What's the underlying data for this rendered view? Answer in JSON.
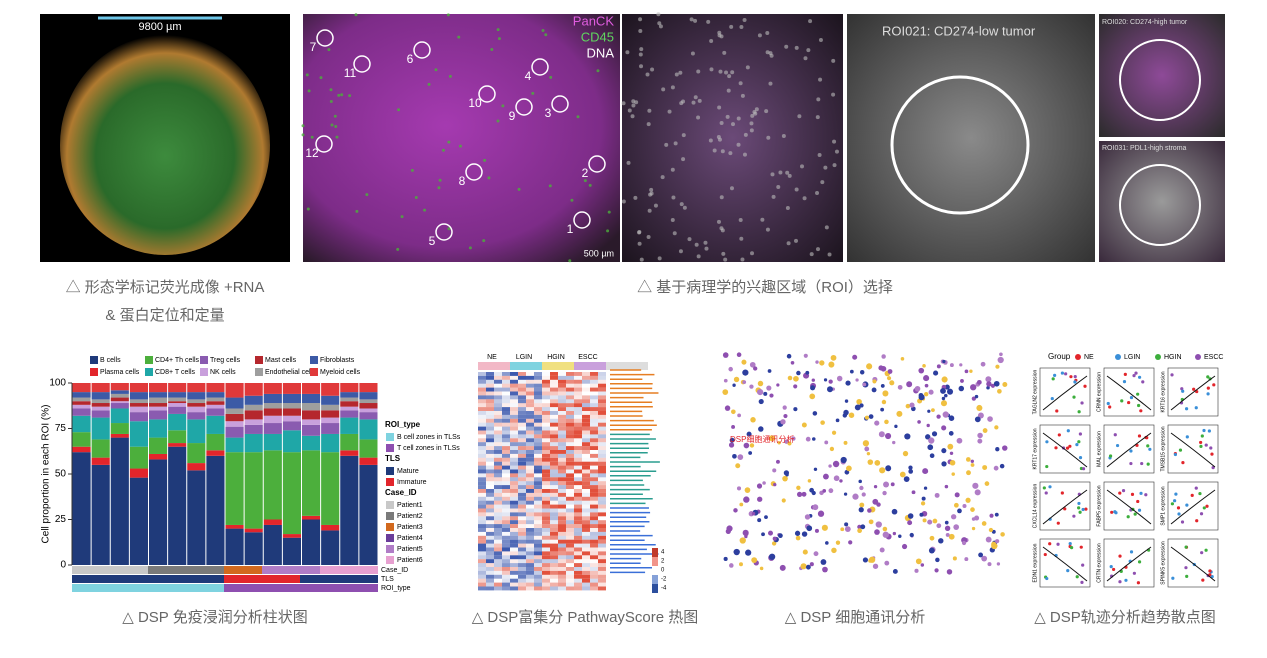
{
  "top_panels": {
    "scale_bar": "9800 µm",
    "markers": [
      "PanCK",
      "CD45",
      "DNA"
    ],
    "roi_numbers": [
      "7",
      "11",
      "6",
      "4",
      "10",
      "9",
      "3",
      "12",
      "2",
      "8",
      "1",
      "5"
    ],
    "scale_bar_2": "500 µm",
    "roi_titles": [
      "ROI021: CD274-low tumor",
      "ROI020: CD274-high tumor",
      "ROI031: PDL1-high stroma"
    ]
  },
  "captions": [
    "△ 形态学标记荧光成像 +RNA",
    "& 蛋白定位和定量",
    "△ 基于病理学的兴趣区域（ROI）选择",
    "△ DSP 免疫浸润分析柱状图",
    "△ DSP富集分 PathwayScore 热图",
    "△ DSP 细胞通讯分析",
    "△ DSP轨迹分析趋势散点图"
  ],
  "chart_data": {
    "type": "bar",
    "stacked": true,
    "ylabel": "Cell proportion in each ROI (%)",
    "ylim": [
      0,
      100
    ],
    "yticks": [
      0,
      25,
      50,
      75,
      100
    ],
    "series": [
      {
        "name": "B cells",
        "color": "#1f3a7a",
        "values": [
          62,
          55,
          70,
          48,
          58,
          65,
          52,
          60,
          20,
          18,
          22,
          15,
          25,
          19,
          60,
          55
        ]
      },
      {
        "name": "Plasma cells",
        "color": "#e2252b",
        "values": [
          3,
          4,
          2,
          5,
          3,
          2,
          4,
          3,
          2,
          2,
          3,
          2,
          2,
          3,
          3,
          4
        ]
      },
      {
        "name": "CD4+ Th cells",
        "color": "#4caf3c",
        "values": [
          8,
          10,
          6,
          12,
          9,
          7,
          11,
          9,
          40,
          42,
          38,
          45,
          36,
          40,
          9,
          10
        ]
      },
      {
        "name": "CD8+ T cells",
        "color": "#1fa7a7",
        "values": [
          9,
          12,
          8,
          14,
          10,
          9,
          13,
          10,
          8,
          10,
          9,
          12,
          8,
          10,
          9,
          11
        ]
      },
      {
        "name": "Treg cells",
        "color": "#8a5bb0",
        "values": [
          4,
          4,
          3,
          5,
          5,
          4,
          4,
          4,
          6,
          5,
          6,
          5,
          6,
          6,
          4,
          4
        ]
      },
      {
        "name": "NK cells",
        "color": "#c9a0dc",
        "values": [
          2,
          2,
          1,
          3,
          2,
          2,
          3,
          2,
          3,
          3,
          4,
          3,
          3,
          3,
          2,
          2
        ]
      },
      {
        "name": "Mast cells",
        "color": "#b5272d",
        "values": [
          2,
          2,
          2,
          2,
          2,
          1,
          2,
          2,
          4,
          5,
          4,
          4,
          5,
          4,
          3,
          3
        ]
      },
      {
        "name": "Endothelial cells",
        "color": "#9e9e9e",
        "values": [
          2,
          2,
          2,
          2,
          3,
          2,
          2,
          2,
          3,
          3,
          3,
          3,
          4,
          3,
          2,
          2
        ]
      },
      {
        "name": "Fibroblasts",
        "color": "#3c5aa6",
        "values": [
          3,
          4,
          2,
          4,
          3,
          3,
          4,
          3,
          6,
          5,
          5,
          5,
          5,
          5,
          3,
          4
        ]
      },
      {
        "name": "Myeloid cells",
        "color": "#e0393a",
        "values": [
          5,
          5,
          4,
          5,
          5,
          5,
          5,
          5,
          8,
          7,
          6,
          6,
          6,
          7,
          5,
          5
        ]
      }
    ],
    "annotation_legend": {
      "roi_title": "ROI_type",
      "roi_items": [
        {
          "name": "B cell zones in TLSs",
          "color": "#7fd3e0"
        },
        {
          "name": "T cell zones in TLSs",
          "color": "#8e4fb0"
        }
      ],
      "tls_title": "TLS",
      "tls_items": [
        {
          "name": "Mature",
          "color": "#1f3a7a"
        },
        {
          "name": "Immature",
          "color": "#e2252b"
        }
      ],
      "case_title": "Case_ID",
      "case_items": [
        {
          "name": "Patient1",
          "color": "#c8c8c8"
        },
        {
          "name": "Patient2",
          "color": "#7a7a7a"
        },
        {
          "name": "Patient3",
          "color": "#d2691e"
        },
        {
          "name": "Patient4",
          "color": "#6a3d9a"
        },
        {
          "name": "Patient5",
          "color": "#b07cc6"
        },
        {
          "name": "Patient6",
          "color": "#e7a0d0"
        }
      ]
    },
    "annotation_rows": [
      "Case_ID",
      "TLS",
      "ROI_type"
    ]
  },
  "heatmap": {
    "groups": [
      "NE",
      "LGIN",
      "HGIN",
      "ESCC"
    ],
    "scale_ticks": [
      4,
      2,
      0,
      -2,
      -4
    ]
  },
  "cell_communication": {
    "label": "DSP细胞通讯分析"
  },
  "trajectory": {
    "legend_title": "Group",
    "groups": [
      {
        "name": "NE",
        "color": "#e2252b"
      },
      {
        "name": "LGIN",
        "color": "#3a8fd8"
      },
      {
        "name": "HGIN",
        "color": "#3cae3c"
      },
      {
        "name": "ESCC",
        "color": "#8e4fb0"
      }
    ],
    "genes": [
      "TAGLN2 expression",
      "CRNN expression",
      "KRT16 expression",
      "KRT17 expression",
      "MAL expression",
      "TMSB15 expression",
      "CXCL14 expression",
      "FABP5 expression",
      "SMP1 expression",
      "EDN1 expression",
      "CRTN expression",
      "SPINK5 expression"
    ]
  }
}
